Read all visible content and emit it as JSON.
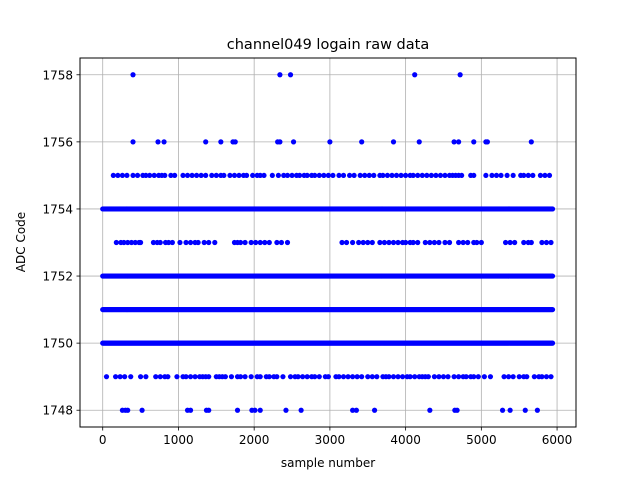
{
  "chart_data": {
    "type": "scatter",
    "title": "channel049 logain raw data",
    "xlabel": "sample number",
    "ylabel": "ADC Code",
    "xlim": [
      -300,
      6250
    ],
    "ylim": [
      1747.5,
      1758.5
    ],
    "xticks": [
      0,
      1000,
      2000,
      3000,
      4000,
      5000,
      6000
    ],
    "yticks": [
      1748,
      1750,
      1752,
      1754,
      1756,
      1758
    ],
    "grid": true,
    "marker_color": "#0000ff",
    "series": [
      {
        "x_min": 0,
        "x_max": 5940,
        "dense_levels": [
          1750,
          1751,
          1752,
          1754
        ],
        "sparse_levels": [
          {
            "y": 1749,
            "x": [
              50,
              170,
              230,
              290,
              370,
              500,
              570,
              700,
              760,
              820,
              860,
              980,
              1060,
              1100,
              1160,
              1220,
              1280,
              1320,
              1360,
              1400,
              1500,
              1540,
              1580,
              1620,
              1700,
              1780,
              1820,
              1880,
              1960,
              2040,
              2080,
              2160,
              2200,
              2260,
              2300,
              2380,
              2480,
              2540,
              2580,
              2640,
              2700,
              2760,
              2800,
              2860,
              2940,
              2980,
              3080,
              3120,
              3180,
              3240,
              3300,
              3360,
              3420,
              3500,
              3560,
              3620,
              3700,
              3740,
              3780,
              3840,
              3900,
              3960,
              4020,
              4060,
              4120,
              4180,
              4220,
              4260,
              4300,
              4380,
              4440,
              4500,
              4560,
              4640,
              4700,
              4760,
              4800,
              4860,
              4900,
              4960,
              5040,
              5120,
              5300,
              5360,
              5420,
              5500,
              5560,
              5600,
              5700,
              5760,
              5800,
              5860,
              5920
            ]
          },
          {
            "y": 1753,
            "x": [
              180,
              240,
              280,
              330,
              380,
              430,
              480,
              500,
              670,
              720,
              760,
              830,
              870,
              920,
              1020,
              1100,
              1160,
              1220,
              1260,
              1340,
              1400,
              1480,
              1740,
              1780,
              1820,
              1880,
              1960,
              2020,
              2080,
              2140,
              2200,
              2300,
              2360,
              2440,
              3160,
              3220,
              3300,
              3380,
              3440,
              3500,
              3560,
              3660,
              3720,
              3780,
              3840,
              3900,
              3960,
              4000,
              4060,
              4100,
              4160,
              4260,
              4320,
              4380,
              4440,
              4520,
              4580,
              4700,
              4760,
              4820,
              4900,
              4940,
              5000,
              5320,
              5380,
              5440,
              5560,
              5620,
              5660,
              5800,
              5860,
              5920
            ]
          },
          {
            "y": 1755,
            "x": [
              140,
              200,
              260,
              320,
              400,
              460,
              530,
              570,
              620,
              680,
              740,
              780,
              820,
              900,
              950,
              1060,
              1120,
              1180,
              1240,
              1300,
              1360,
              1440,
              1500,
              1560,
              1600,
              1680,
              1740,
              1800,
              1860,
              1900,
              1980,
              2040,
              2080,
              2130,
              2240,
              2320,
              2390,
              2440,
              2500,
              2560,
              2600,
              2660,
              2700,
              2760,
              2800,
              2860,
              2920,
              2980,
              3040,
              3120,
              3180,
              3260,
              3320,
              3400,
              3460,
              3520,
              3580,
              3660,
              3700,
              3760,
              3820,
              3880,
              3940,
              4000,
              4060,
              4100,
              4160,
              4220,
              4280,
              4340,
              4400,
              4460,
              4520,
              4580,
              4620,
              4660,
              4700,
              4740,
              4860,
              4900,
              5060,
              5140,
              5200,
              5260,
              5340,
              5420,
              5520,
              5560,
              5620,
              5680,
              5780,
              5840,
              5900
            ]
          },
          {
            "y": 1748,
            "x": [
              260,
              300,
              330,
              520,
              1120,
              1160,
              1370,
              1400,
              1780,
              1970,
              2010,
              2080,
              2420,
              2620,
              3300,
              3350,
              3590,
              4320,
              4650,
              4680,
              5280,
              5380,
              5580,
              5740
            ]
          },
          {
            "y": 1756,
            "x": [
              400,
              730,
              810,
              1360,
              1560,
              1720,
              1750,
              2310,
              2340,
              2520,
              3000,
              3420,
              3840,
              4180,
              4640,
              4700,
              4900,
              5060,
              5080,
              5660
            ]
          },
          {
            "y": 1758,
            "x": [
              400,
              2340,
              2480,
              4120,
              4720
            ]
          }
        ]
      }
    ]
  }
}
